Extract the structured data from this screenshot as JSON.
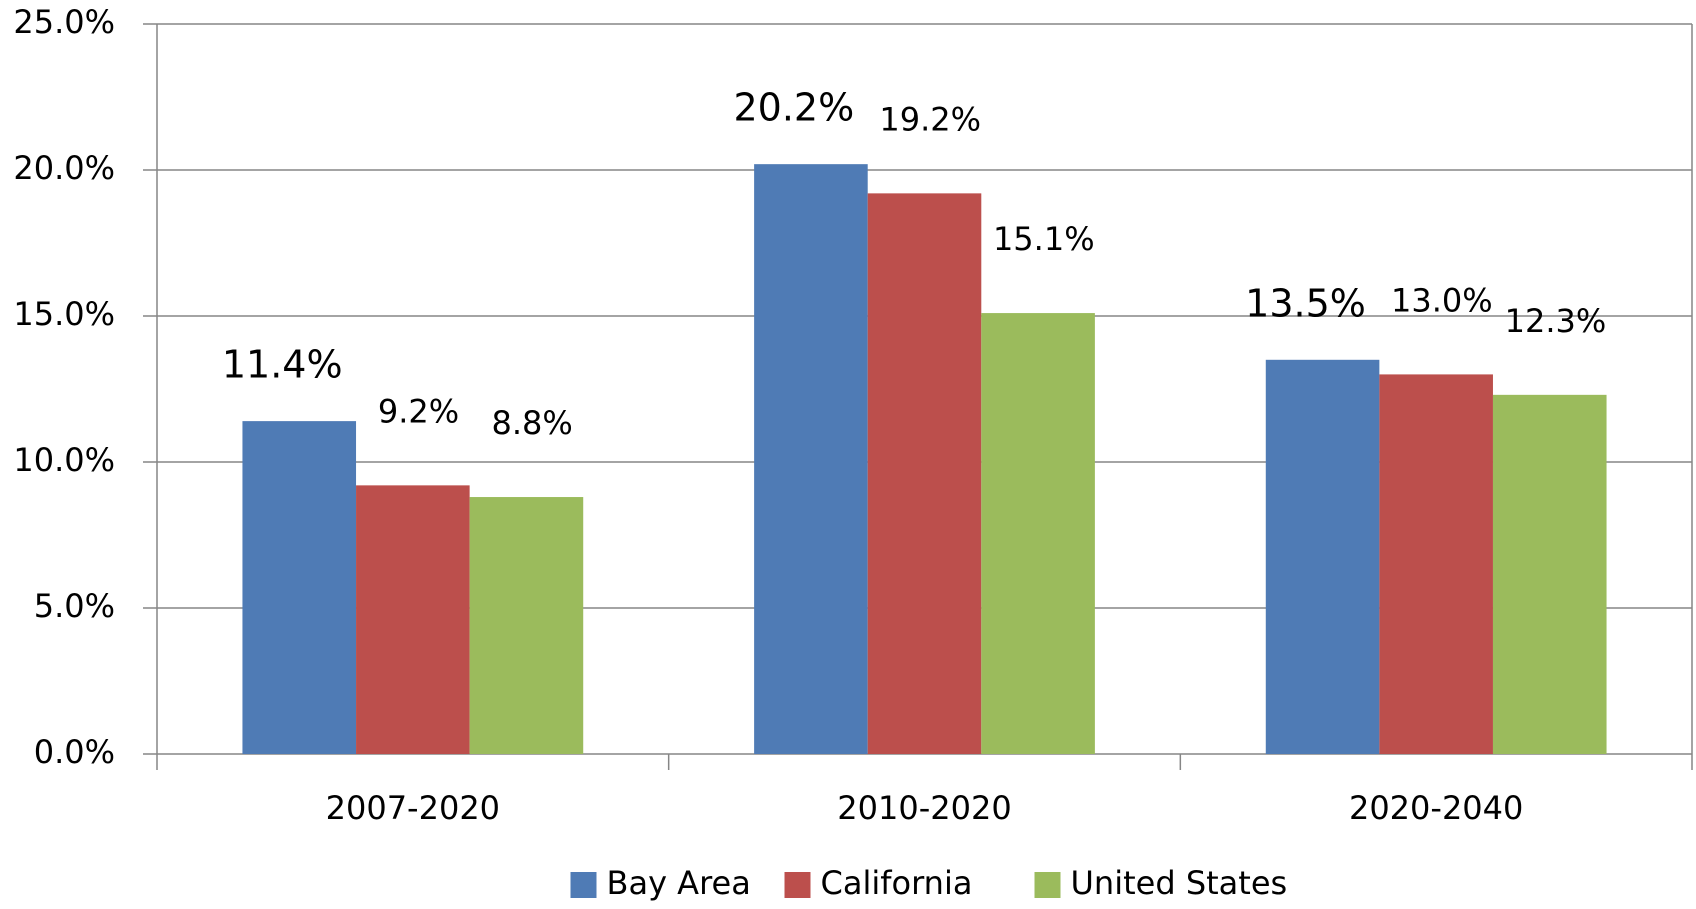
{
  "chart_data": {
    "type": "bar",
    "categories": [
      "2007-2020",
      "2010-2020",
      "2020-2040"
    ],
    "series": [
      {
        "name": "Bay Area",
        "color": "#4f7bb5",
        "values": [
          11.4,
          20.2,
          13.5
        ],
        "value_labels": [
          "11.4%",
          "20.2%",
          "13.5%"
        ]
      },
      {
        "name": "California",
        "color": "#bc4f4c",
        "values": [
          9.2,
          19.2,
          13.0
        ],
        "value_labels": [
          "9.2%",
          "19.2%",
          "13.0%"
        ]
      },
      {
        "name": "United States",
        "color": "#9bbb5c",
        "values": [
          8.8,
          15.1,
          12.3
        ],
        "value_labels": [
          "8.8%",
          "15.1%",
          "12.3%"
        ]
      }
    ],
    "ylim": [
      0,
      25
    ],
    "yticks": [
      {
        "value": 0,
        "label": "0.0%"
      },
      {
        "value": 5,
        "label": "5.0%"
      },
      {
        "value": 10,
        "label": "10.0%"
      },
      {
        "value": 15,
        "label": "15.0%"
      },
      {
        "value": 20,
        "label": "20.0%"
      },
      {
        "value": 25,
        "label": "25.0%"
      }
    ],
    "grid": true,
    "legend": "bottom"
  }
}
